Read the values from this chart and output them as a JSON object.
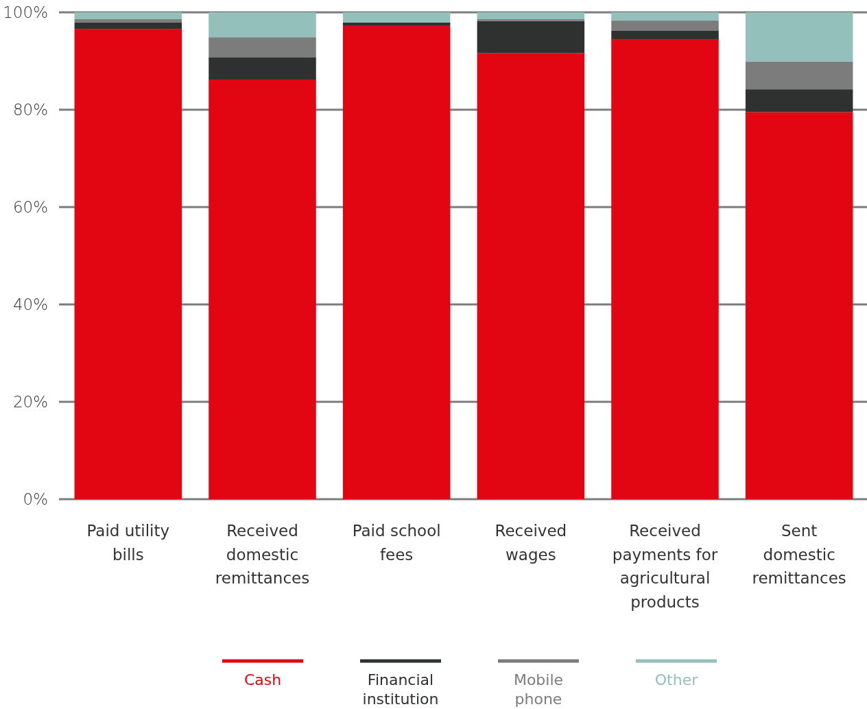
{
  "chart_data": {
    "type": "bar",
    "stacked": true,
    "categories": [
      "Paid utility bills",
      "Received domestic remittances",
      "Paid school fees",
      "Received wages",
      "Received payments for agricultural products",
      "Sent domestic remittances"
    ],
    "series": [
      {
        "name": "Cash",
        "color": "#e20613",
        "values": [
          96.6,
          86.2,
          97.2,
          91.6,
          94.5,
          79.5
        ]
      },
      {
        "name": "Financial institution",
        "color": "#2f3130",
        "values": [
          1.3,
          4.6,
          0.7,
          6.6,
          1.7,
          4.7
        ]
      },
      {
        "name": "Mobile phone",
        "color": "#7c7c7c",
        "values": [
          0.7,
          4.1,
          0,
          0.4,
          2.1,
          5.7
        ]
      },
      {
        "name": "Other",
        "color": "#94c0bc",
        "values": [
          1.4,
          5.1,
          2.1,
          1.4,
          1.7,
          10.1
        ]
      }
    ],
    "ylim": [
      0,
      100
    ],
    "yticks": [
      {
        "value": 0,
        "label": "0%"
      },
      {
        "value": 20,
        "label": "20%"
      },
      {
        "value": 40,
        "label": "40%"
      },
      {
        "value": 60,
        "label": "60%"
      },
      {
        "value": 80,
        "label": "80%"
      },
      {
        "value": 100,
        "label": "100%"
      }
    ],
    "grid": "y",
    "legend": "bottom"
  }
}
